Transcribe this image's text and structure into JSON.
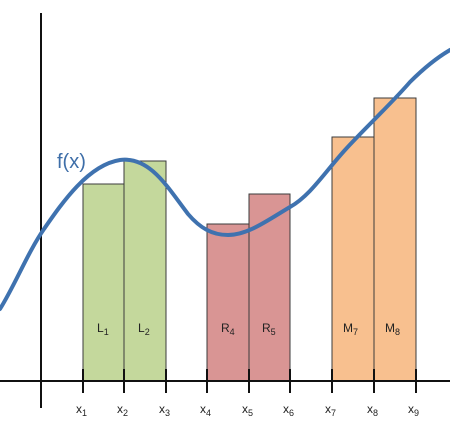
{
  "function_label": "f(x)",
  "colors": {
    "curve": "#3f72af",
    "axis": "#111111",
    "left_fill": "#c4d89c",
    "left_stroke": "#3b3b3b",
    "right_fill": "#d99594",
    "right_stroke": "#3b3b3b",
    "mid_fill": "#f8c08f",
    "mid_stroke": "#3b3b3b"
  },
  "ticks": [
    {
      "base": "x",
      "sub": "1"
    },
    {
      "base": "x",
      "sub": "2"
    },
    {
      "base": "x",
      "sub": "3"
    },
    {
      "base": "x",
      "sub": "4"
    },
    {
      "base": "x",
      "sub": "5"
    },
    {
      "base": "x",
      "sub": "6"
    },
    {
      "base": "x",
      "sub": "7"
    },
    {
      "base": "x",
      "sub": "8"
    },
    {
      "base": "x",
      "sub": "9"
    }
  ],
  "rectangles": [
    {
      "id": "L1",
      "base": "L",
      "sub": "1",
      "group": "left"
    },
    {
      "id": "L2",
      "base": "L",
      "sub": "2",
      "group": "left"
    },
    {
      "id": "R4",
      "base": "R",
      "sub": "4",
      "group": "right"
    },
    {
      "id": "R5",
      "base": "R",
      "sub": "5",
      "group": "right"
    },
    {
      "id": "M7",
      "base": "M",
      "sub": "7",
      "group": "mid"
    },
    {
      "id": "M8",
      "base": "M",
      "sub": "8",
      "group": "mid"
    }
  ]
}
